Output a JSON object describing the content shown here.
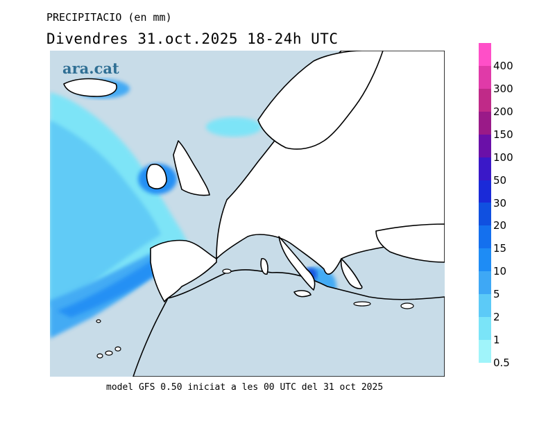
{
  "header": {
    "title": "PRECIPITACIO (en mm)",
    "subtitle": "Divendres  31.oct.2025 18-24h UTC"
  },
  "brand": {
    "logo_text": "ara.cat"
  },
  "footer": {
    "text": "model GFS 0.50 iniciat a les 00 UTC del 31 oct 2025"
  },
  "colors": {
    "sea": "#c8dce8",
    "land": "#ffffff",
    "coast": "#000000"
  },
  "legend": {
    "levels": [
      {
        "label": "400",
        "color": "#ff4fc8"
      },
      {
        "label": "300",
        "color": "#e03aa8"
      },
      {
        "label": "200",
        "color": "#c02a88"
      },
      {
        "label": "150",
        "color": "#9a1a88"
      },
      {
        "label": "100",
        "color": "#6a10a8"
      },
      {
        "label": "50",
        "color": "#3a18c8"
      },
      {
        "label": "30",
        "color": "#1a2ad8"
      },
      {
        "label": "20",
        "color": "#1050e0"
      },
      {
        "label": "15",
        "color": "#1470ee"
      },
      {
        "label": "10",
        "color": "#1e8cf5"
      },
      {
        "label": "5",
        "color": "#3ea8f5"
      },
      {
        "label": "2",
        "color": "#5ccaf7"
      },
      {
        "label": "1",
        "color": "#7ae4f8"
      },
      {
        "label": "0.5",
        "color": "#a0f4fa"
      }
    ]
  }
}
